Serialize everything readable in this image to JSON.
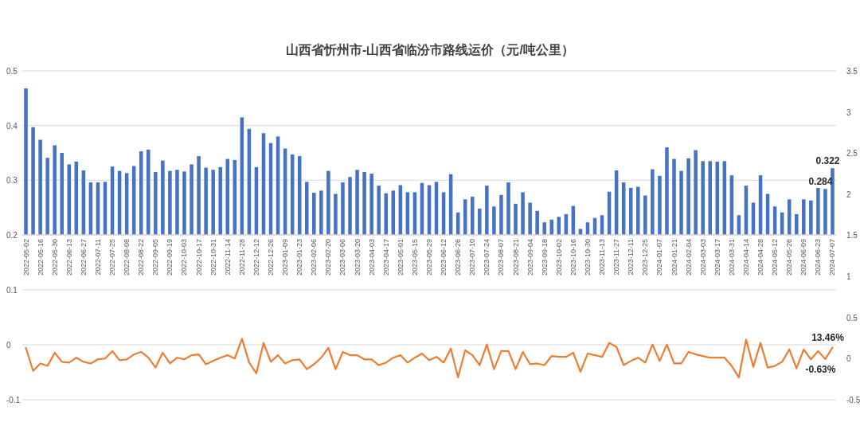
{
  "chart_data": [
    {
      "type": "bar",
      "title": "山西省忻州市-山西省临汾市路线运价（元/吨公里）",
      "categories": [
        "2022-05-02",
        null,
        "2022-05-16",
        null,
        "2022-05-30",
        null,
        "2022-06-13",
        null,
        "2022-06-27",
        null,
        "2022-07-11",
        null,
        "2022-07-25",
        null,
        "2022-08-08",
        null,
        "2022-08-22",
        null,
        "2022-09-05",
        null,
        "2022-09-19",
        null,
        "2022-10-03",
        null,
        "2022-10-17",
        null,
        "2022-10-31",
        null,
        "2022-11-14",
        null,
        "2022-11-28",
        null,
        "2022-12-12",
        null,
        "2022-12-26",
        null,
        "2023-01-09",
        null,
        "2023-01-23",
        null,
        "2023-02-06",
        null,
        "2023-02-20",
        null,
        "2023-03-06",
        null,
        "2023-03-20",
        null,
        "2023-04-03",
        null,
        "2023-04-17",
        null,
        "2023-05-01",
        null,
        "2023-05-15",
        null,
        "2023-05-29",
        null,
        "2023-06-12",
        null,
        "2023-06-26",
        null,
        "2023-07-10",
        null,
        "2023-07-24",
        null,
        "2023-08-07",
        null,
        "2023-08-21",
        null,
        "2023-09-04",
        null,
        "2023-09-18",
        null,
        "2023-10-02",
        null,
        "2023-10-16",
        null,
        "2023-10-30",
        null,
        "2023-11-13",
        null,
        "2023-11-27",
        null,
        "2023-12-11",
        null,
        "2023-12-25",
        null,
        "2024-01-07",
        null,
        "2024-01-21",
        null,
        "2024-02-04",
        null,
        "2024-03-03",
        null,
        "2024-03-17",
        null,
        "2024-03-31",
        null,
        "2024-04-14",
        null,
        "2024-04-28",
        null,
        "2024-05-12",
        null,
        "2024-05-26",
        null,
        "2024-06-09",
        null,
        "2024-06-23",
        null,
        "2024-07-07"
      ],
      "series": [
        {
          "color": "#4472c4",
          "values": [
            0.468,
            0.397,
            0.374,
            0.341,
            0.364,
            0.35,
            0.329,
            0.334,
            0.318,
            0.296,
            0.296,
            0.297,
            0.325,
            0.317,
            0.313,
            0.326,
            0.353,
            0.356,
            0.315,
            0.336,
            0.317,
            0.319,
            0.316,
            0.329,
            0.344,
            0.323,
            0.319,
            0.324,
            0.339,
            0.337,
            0.415,
            0.394,
            0.324,
            0.386,
            0.368,
            0.38,
            0.358,
            0.347,
            0.344,
            0.297,
            0.277,
            0.281,
            0.317,
            0.275,
            0.296,
            0.306,
            0.319,
            0.315,
            0.312,
            0.29,
            0.276,
            0.281,
            0.291,
            0.278,
            0.278,
            0.295,
            0.291,
            0.297,
            0.278,
            0.311,
            0.241,
            0.265,
            0.27,
            0.248,
            0.29,
            0.252,
            0.273,
            0.296,
            0.257,
            0.278,
            0.259,
            0.244,
            0.223,
            0.228,
            0.233,
            0.238,
            0.253,
            0.211,
            0.223,
            0.231,
            0.236,
            0.279,
            0.318,
            0.296,
            0.286,
            0.288,
            0.272,
            0.32,
            0.308,
            0.36,
            0.339,
            0.317,
            0.34,
            0.355,
            0.335,
            0.335,
            0.334,
            0.335,
            0.309,
            0.236,
            0.29,
            0.259,
            0.309,
            0.275,
            0.252,
            0.241,
            0.265,
            0.238,
            0.265,
            0.263,
            0.286,
            0.284,
            0.322
          ],
          "value_labels": [
            null,
            null,
            null,
            null,
            null,
            null,
            null,
            null,
            null,
            null,
            null,
            null,
            null,
            null,
            null,
            null,
            null,
            null,
            null,
            null,
            null,
            null,
            null,
            null,
            null,
            null,
            null,
            null,
            null,
            null,
            null,
            null,
            null,
            null,
            null,
            null,
            null,
            null,
            null,
            null,
            null,
            null,
            null,
            null,
            null,
            null,
            null,
            null,
            null,
            null,
            null,
            null,
            null,
            null,
            null,
            null,
            null,
            null,
            null,
            null,
            null,
            null,
            null,
            null,
            null,
            null,
            null,
            null,
            null,
            null,
            null,
            null,
            null,
            null,
            null,
            null,
            null,
            null,
            null,
            null,
            null,
            null,
            null,
            null,
            null,
            null,
            null,
            null,
            null,
            null,
            null,
            null,
            null,
            null,
            null,
            null,
            null,
            null,
            null,
            null,
            null,
            null,
            null,
            null,
            null,
            null,
            null,
            null,
            null,
            null,
            null,
            "0.284",
            "0.322"
          ]
        }
      ],
      "ylim": [
        0.2,
        0.5
      ],
      "yticks": [
        0.2,
        0.3,
        0.4,
        0.5
      ],
      "y2lim": [
        1.5,
        3.5
      ],
      "y2ticks": [
        1.5,
        2,
        2.5,
        3,
        3.5
      ],
      "grid": "y"
    },
    {
      "type": "line",
      "categories": [
        null,
        null,
        null,
        null,
        null,
        null,
        null,
        null,
        null,
        null,
        null,
        null,
        null,
        null,
        null,
        null,
        null,
        null,
        null,
        null,
        null,
        null,
        null,
        null,
        null,
        null,
        null,
        null,
        null,
        null,
        null,
        null,
        null,
        null,
        null,
        null,
        null,
        null,
        null,
        null,
        null,
        null,
        null,
        null,
        null,
        null,
        null,
        null,
        null,
        null,
        null,
        null,
        null,
        null,
        null,
        null,
        null,
        null,
        null,
        null,
        null,
        null,
        null,
        null,
        null,
        null,
        null,
        null,
        null,
        null,
        null,
        null,
        null,
        null,
        null,
        null,
        null,
        null,
        null,
        null,
        null,
        null,
        null,
        null,
        null,
        null,
        null,
        null,
        null,
        null,
        null,
        null,
        null,
        null,
        null,
        null,
        null,
        null,
        null,
        null,
        null,
        null,
        null,
        null,
        null,
        null,
        null,
        null,
        null,
        null,
        null,
        null,
        null
      ],
      "series": [
        {
          "axis": "y2",
          "color": "#ed7d31",
          "values": [
            0.13,
            -0.15,
            -0.06,
            -0.09,
            0.07,
            -0.04,
            -0.05,
            0.01,
            -0.04,
            -0.06,
            -0.01,
            0.0,
            0.09,
            -0.02,
            -0.01,
            0.05,
            0.08,
            0.01,
            -0.11,
            0.07,
            -0.06,
            0.01,
            -0.01,
            0.04,
            0.05,
            -0.07,
            -0.03,
            0.01,
            0.04,
            0.0,
            0.24,
            -0.05,
            -0.18,
            0.19,
            -0.04,
            0.04,
            -0.06,
            -0.02,
            -0.01,
            -0.13,
            -0.07,
            0.01,
            0.13,
            -0.13,
            0.08,
            0.04,
            0.04,
            -0.01,
            -0.01,
            -0.08,
            -0.05,
            0.01,
            0.04,
            -0.05,
            0.01,
            0.06,
            -0.02,
            0.02,
            -0.05,
            0.12,
            -0.23,
            0.1,
            0.04,
            -0.08,
            0.17,
            -0.13,
            0.09,
            0.09,
            -0.13,
            0.08,
            -0.07,
            -0.06,
            -0.08,
            0.03,
            0.02,
            0.02,
            0.07,
            -0.16,
            0.06,
            0.04,
            0.02,
            0.19,
            0.14,
            -0.08,
            -0.03,
            0.01,
            -0.05,
            0.17,
            -0.03,
            0.17,
            -0.06,
            -0.06,
            0.08,
            0.05,
            0.03,
            0.01,
            0.01,
            0.01,
            -0.09,
            -0.23,
            0.23,
            -0.1,
            0.19,
            -0.11,
            -0.09,
            -0.04,
            0.11,
            -0.12,
            0.11,
            -0.01,
            0.09,
            -0.0063,
            0.1346
          ],
          "value_labels": [
            null,
            null,
            null,
            null,
            null,
            null,
            null,
            null,
            null,
            null,
            null,
            null,
            null,
            null,
            null,
            null,
            null,
            null,
            null,
            null,
            null,
            null,
            null,
            null,
            null,
            null,
            null,
            null,
            null,
            null,
            null,
            null,
            null,
            null,
            null,
            null,
            null,
            null,
            null,
            null,
            null,
            null,
            null,
            null,
            null,
            null,
            null,
            null,
            null,
            null,
            null,
            null,
            null,
            null,
            null,
            null,
            null,
            null,
            null,
            null,
            null,
            null,
            null,
            null,
            null,
            null,
            null,
            null,
            null,
            null,
            null,
            null,
            null,
            null,
            null,
            null,
            null,
            null,
            null,
            null,
            null,
            null,
            null,
            null,
            null,
            null,
            null,
            null,
            null,
            null,
            null,
            null,
            null,
            null,
            null,
            null,
            null,
            null,
            null,
            null,
            null,
            null,
            null,
            null,
            null,
            null,
            null,
            null,
            null,
            null,
            null,
            "-0.63%",
            "13.46%"
          ]
        }
      ],
      "ylim": [
        -0.1,
        0.2
      ],
      "yticks": [
        -0.1,
        0,
        0.1,
        {
          "value": 0.2,
          "label": null
        }
      ],
      "y2lim": [
        -0.5,
        1.5
      ],
      "y2ticks": [
        -0.5,
        0,
        0.5,
        1,
        {
          "value": 1.5,
          "label": null
        }
      ],
      "tick_labels": "y",
      "grid": "y"
    }
  ]
}
